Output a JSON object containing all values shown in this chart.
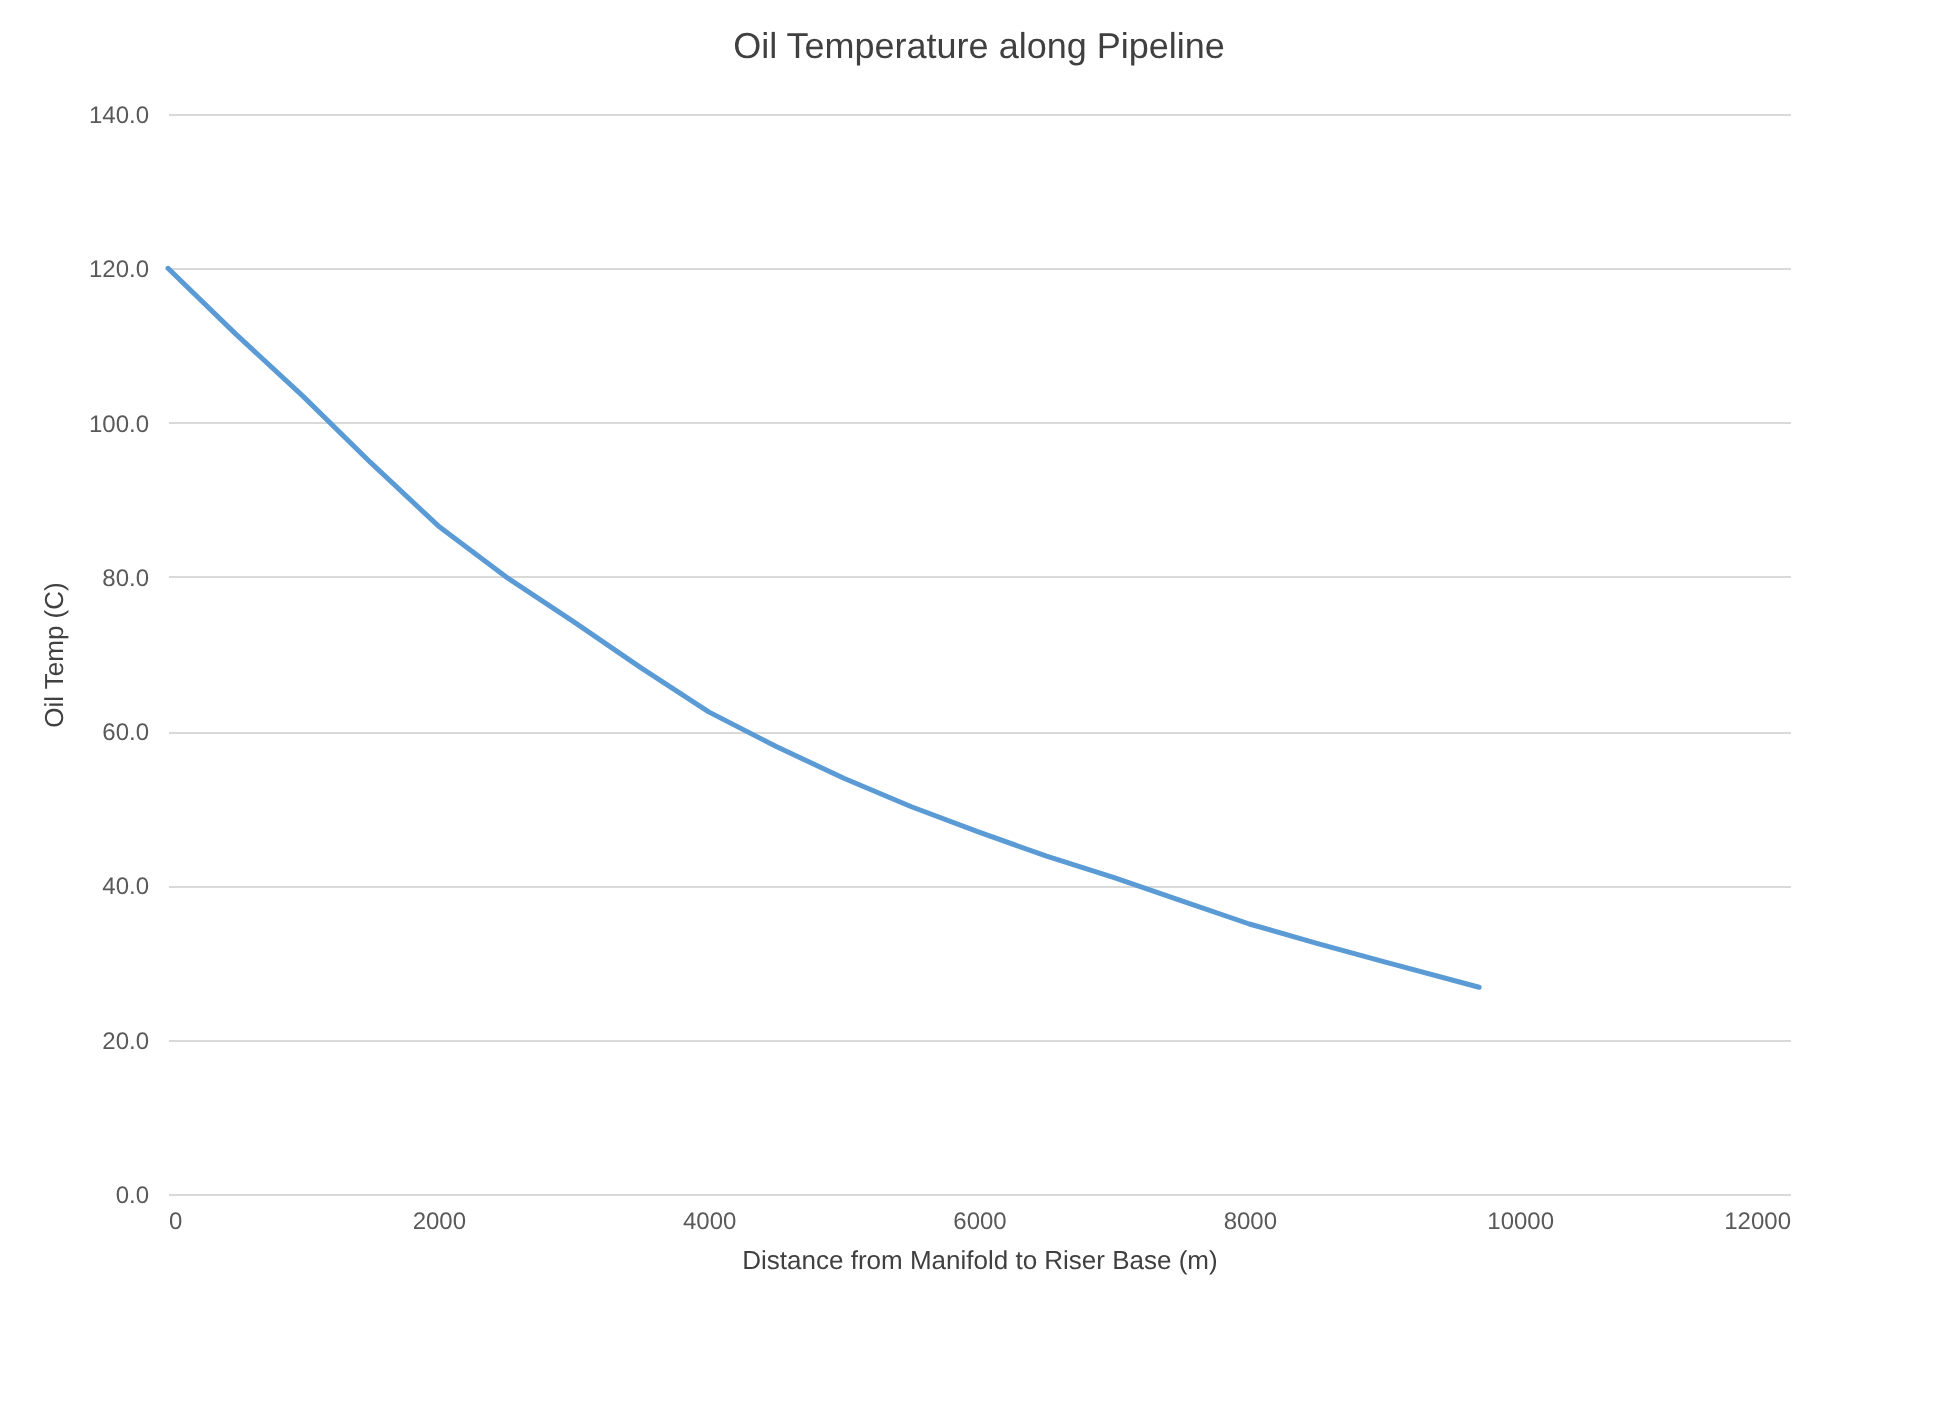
{
  "chart_data": {
    "type": "line",
    "title": "Oil Temperature along Pipeline",
    "xlabel": "Distance from Manifold to Riser Base (m)",
    "ylabel": "Oil Temp (C)",
    "x": [
      0,
      500,
      1000,
      1500,
      2000,
      2500,
      3000,
      3500,
      4000,
      4500,
      5000,
      5500,
      6000,
      6500,
      7000,
      7500,
      8000,
      8500,
      9000,
      9700
    ],
    "series": [
      {
        "color": "#5b9bd5",
        "values": [
          120,
          111.5,
          103.4,
          94.8,
          86.6,
          80,
          74.2,
          68.2,
          62.5,
          58,
          53.9,
          50.2,
          46.9,
          43.8,
          41,
          38,
          35,
          32.5,
          30.1,
          26.8
        ]
      }
    ],
    "xlim": [
      0,
      12000
    ],
    "xticks": [
      0,
      2000,
      4000,
      6000,
      8000,
      10000,
      12000
    ],
    "ylim": [
      0,
      140
    ],
    "yticks": [
      {
        "value": 0,
        "label": "0.0"
      },
      {
        "value": 20,
        "label": "20.0"
      },
      {
        "value": 40,
        "label": "40.0"
      },
      {
        "value": 60,
        "label": "60.0"
      },
      {
        "value": 80,
        "label": "80.0"
      },
      {
        "value": 100,
        "label": "100.0"
      },
      {
        "value": 120,
        "label": "120.0"
      },
      {
        "value": 140,
        "label": "140.0"
      }
    ],
    "grid": "y",
    "marker": "none",
    "line_style": "solid"
  }
}
